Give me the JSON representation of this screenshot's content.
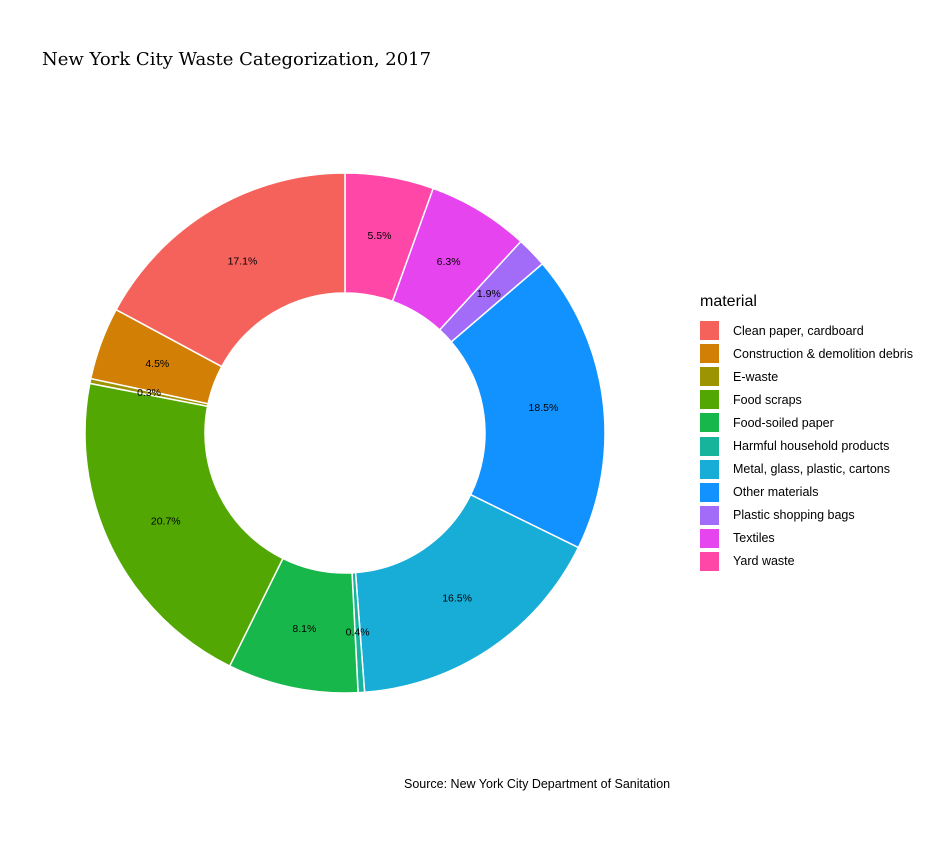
{
  "chart_data": {
    "type": "pie",
    "donut": true,
    "title": "New York City Waste Categorization, 2017",
    "caption": "Source: New York City Department of Sanitation",
    "legend_title": "material",
    "legend_position": "right",
    "slices": [
      {
        "name": "Yard waste",
        "value": 5.5,
        "label": "5.5%",
        "color": "#FF47A8"
      },
      {
        "name": "Textiles",
        "value": 6.3,
        "label": "6.3%",
        "color": "#E544EE"
      },
      {
        "name": "Plastic shopping bags",
        "value": 1.9,
        "label": "1.9%",
        "color": "#A26CF8"
      },
      {
        "name": "Other materials",
        "value": 18.5,
        "label": "18.5%",
        "color": "#1192FF"
      },
      {
        "name": "Metal, glass, plastic, cartons",
        "value": 16.5,
        "label": "16.5%",
        "color": "#17ADD7"
      },
      {
        "name": "Harmful household products",
        "value": 0.4,
        "label": "0.4%",
        "color": "#16B49A"
      },
      {
        "name": "Food-soiled paper",
        "value": 8.1,
        "label": "8.1%",
        "color": "#17B74B"
      },
      {
        "name": "Food scraps",
        "value": 20.7,
        "label": "20.7%",
        "color": "#53A703"
      },
      {
        "name": "E-waste",
        "value": 0.3,
        "label": "0.3%",
        "color": "#9C9402"
      },
      {
        "name": "Construction & demolition debris",
        "value": 4.5,
        "label": "4.5%",
        "color": "#D17F05"
      },
      {
        "name": "Clean paper, cardboard",
        "value": 17.1,
        "label": "17.1%",
        "color": "#F5625C"
      }
    ],
    "legend": [
      {
        "name": "Clean paper, cardboard",
        "color": "#F5625C"
      },
      {
        "name": "Construction & demolition debris",
        "color": "#D17F05"
      },
      {
        "name": "E-waste",
        "color": "#9C9402"
      },
      {
        "name": "Food scraps",
        "color": "#53A703"
      },
      {
        "name": "Food-soiled paper",
        "color": "#17B74B"
      },
      {
        "name": "Harmful household products",
        "color": "#16B49A"
      },
      {
        "name": "Metal, glass, plastic, cartons",
        "color": "#17ADD7"
      },
      {
        "name": "Other materials",
        "color": "#1192FF"
      },
      {
        "name": "Plastic shopping bags",
        "color": "#A26CF8"
      },
      {
        "name": "Textiles",
        "color": "#E544EE"
      },
      {
        "name": "Yard waste",
        "color": "#FF47A8"
      }
    ]
  }
}
